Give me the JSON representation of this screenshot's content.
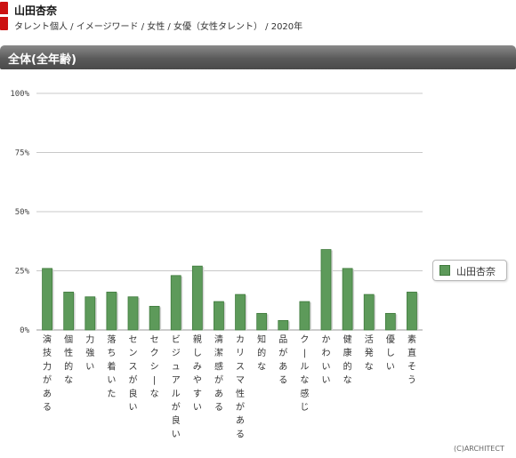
{
  "header": {
    "talent_name": "山田杏奈",
    "breadcrumb": "タレント個人 / イメージワード / 女性 / 女優（女性タレント） / 2020年"
  },
  "section": {
    "title": "全体(全年齢)"
  },
  "legend": {
    "label": "山田杏奈"
  },
  "copyright": "(C)ARCHITECT",
  "colors": {
    "bar": "#5d9a5a",
    "bar_edge": "#3f7a3c",
    "grid": "#c8c8c8",
    "header_red": "#cc1111"
  },
  "chart_data": {
    "type": "bar",
    "categories": [
      "演技力がある",
      "個性的な",
      "力強い",
      "落ち着いた",
      "センスが良い",
      "セクシーな",
      "ビジュアルが良い",
      "親しみやすい",
      "清潔感がある",
      "カリスマ性がある",
      "知的な",
      "品がある",
      "クールな感じ",
      "かわいい",
      "健康的な",
      "活発な",
      "優しい",
      "素直そう"
    ],
    "series": [
      {
        "name": "山田杏奈",
        "values": [
          26,
          16,
          14,
          16,
          14,
          10,
          23,
          27,
          12,
          15,
          7,
          4,
          12,
          34,
          26,
          15,
          7,
          16
        ]
      }
    ],
    "ylim": [
      0,
      100
    ],
    "yticks": [
      "0%",
      "25%",
      "50%",
      "75%",
      "100%"
    ],
    "grid": true,
    "legend_position": "right"
  }
}
